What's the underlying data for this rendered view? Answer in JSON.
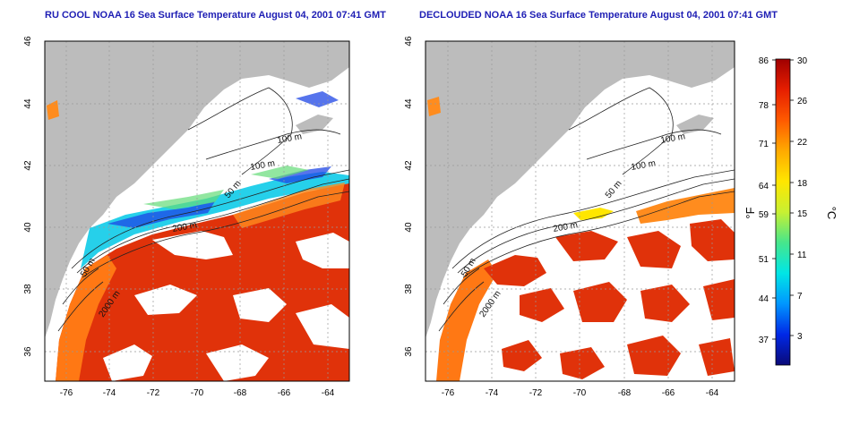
{
  "panels": [
    {
      "title": "RU COOL NOAA 16 Sea Surface Temperature August 04, 2001 07:41 GMT",
      "x_ticks": [
        "-76",
        "-74",
        "-72",
        "-70",
        "-68",
        "-66",
        "-64"
      ],
      "y_ticks": [
        "46",
        "44",
        "42",
        "40",
        "38",
        "36"
      ],
      "contour_labels": [
        "100 m",
        "100 m",
        "50 m",
        "200 m",
        "50 m",
        "2000 m"
      ]
    },
    {
      "title": "DECLOUDED NOAA 16 Sea Surface Temperature August 04, 2001 07:41 GMT",
      "x_ticks": [
        "-76",
        "-74",
        "-72",
        "-70",
        "-68",
        "-66",
        "-64"
      ],
      "y_ticks": [
        "46",
        "44",
        "42",
        "40",
        "38",
        "36"
      ],
      "contour_labels": [
        "100 m",
        "100 m",
        "50 m",
        "200 m",
        "50 m",
        "2000 m"
      ]
    }
  ],
  "colorbar": {
    "fahrenheit_ticks": [
      "86",
      "78",
      "71",
      "64",
      "59",
      "51",
      "44",
      "37"
    ],
    "celsius_ticks": [
      "30",
      "26",
      "22",
      "18",
      "15",
      "11",
      "7",
      "3"
    ],
    "fahrenheit_label": "°F",
    "celsius_label": "°C",
    "colors": [
      "#0a0a78",
      "#0028e6",
      "#0096ff",
      "#00e6e6",
      "#46e68c",
      "#c8f032",
      "#ffe600",
      "#ffaa00",
      "#ff5a00",
      "#e61e00",
      "#a00000"
    ]
  },
  "colors": {
    "land": "#bcbcbc",
    "title": "#1e1eb4",
    "contour": "#222222",
    "grid": "#999999"
  }
}
